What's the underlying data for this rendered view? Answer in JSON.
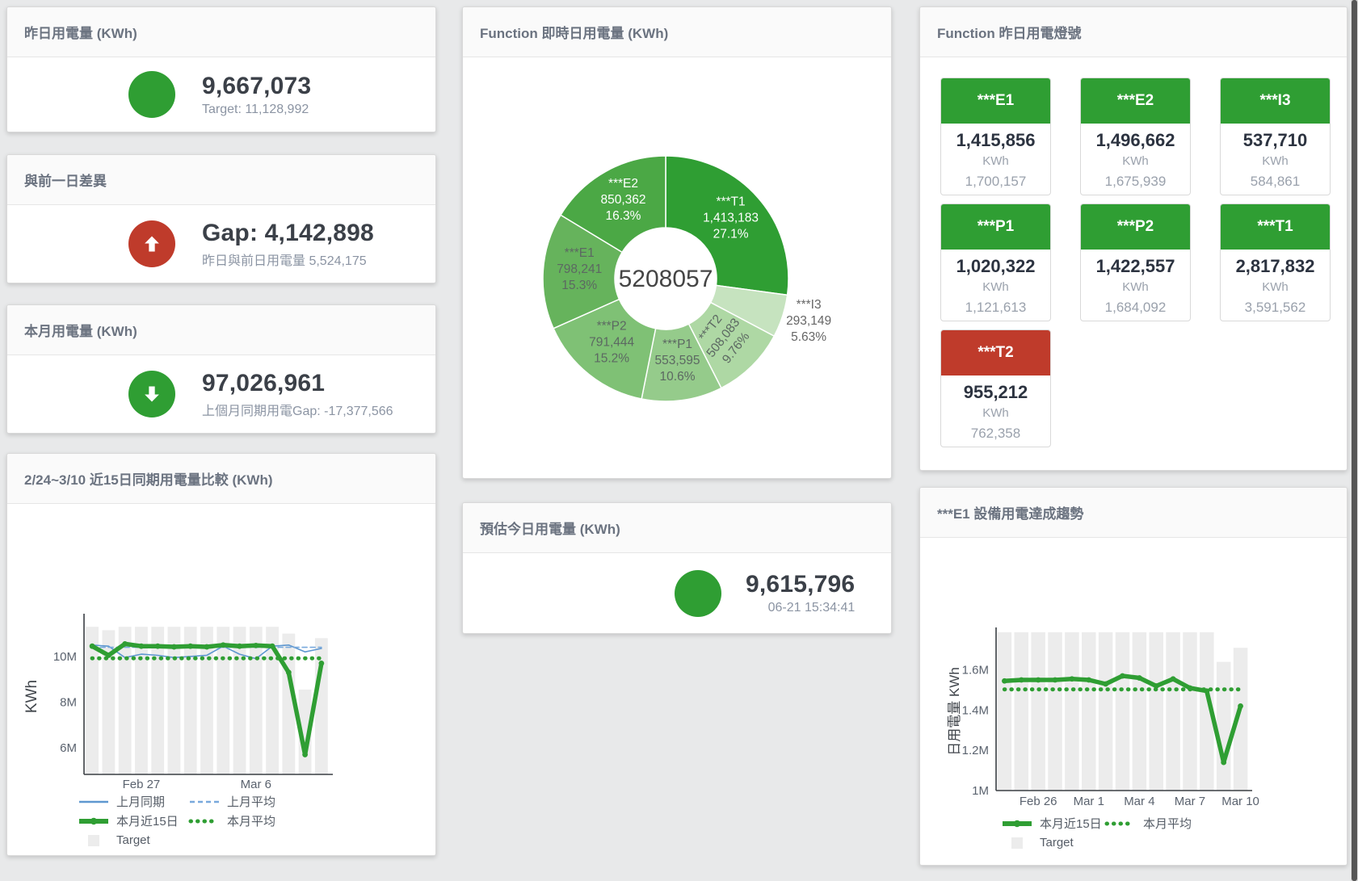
{
  "colors": {
    "green": "#2f9e33",
    "red": "#bf3b2b",
    "blue_line": "#5e97d0",
    "blue_dash": "#79a9dc",
    "target_bar": "#ececec",
    "axis": "#3a3f44",
    "tick_text": "#5a626e",
    "panel_title": "#6b7380",
    "stat_value": "#3b4048",
    "stat_sub": "#8b94a3"
  },
  "panels": {
    "yesterday": {
      "title": "昨日用電量 (KWh)",
      "value": "9,667,073",
      "subtitle": "Target: 11,128,992"
    },
    "day_gap": {
      "title": "與前一日差異",
      "value": "Gap: 4,142,898",
      "subtitle": "昨日與前日用電量 5,524,175"
    },
    "month": {
      "title": "本月用電量 (KWh)",
      "value": "97,026,961",
      "subtitle": "上個月同期用電Gap: -17,377,566"
    },
    "realtime": {
      "title": "Function 即時日用電量 (KWh)"
    },
    "estimate": {
      "title": "預估今日用電量 (KWh)",
      "value": "9,615,796",
      "subtitle": "06-21 15:34:41"
    },
    "lights": {
      "title": "Function 昨日用電燈號",
      "unit": "KWh",
      "tiles": [
        {
          "label": "***E1",
          "value": "1,415,856",
          "unit": "KWh",
          "target": "1,700,157",
          "status": "ok"
        },
        {
          "label": "***E2",
          "value": "1,496,662",
          "unit": "KWh",
          "target": "1,675,939",
          "status": "ok"
        },
        {
          "label": "***I3",
          "value": "537,710",
          "unit": "KWh",
          "target": "584,861",
          "status": "ok"
        },
        {
          "label": "***P1",
          "value": "1,020,322",
          "unit": "KWh",
          "target": "1,121,613",
          "status": "ok"
        },
        {
          "label": "***P2",
          "value": "1,422,557",
          "unit": "KWh",
          "target": "1,684,092",
          "status": "ok"
        },
        {
          "label": "***T1",
          "value": "2,817,832",
          "unit": "KWh",
          "target": "3,591,562",
          "status": "ok"
        },
        {
          "label": "***T2",
          "value": "955,212",
          "unit": "KWh",
          "target": "762,358",
          "status": "alert"
        }
      ]
    },
    "compare": {
      "title": "2/24~3/10 近15日同期用電量比較 (KWh)"
    },
    "trend": {
      "title": "***E1 設備用電達成趨勢"
    }
  },
  "chart_data": [
    {
      "type": "pie",
      "panel": "realtime",
      "title": "Function 即時日用電量 (KWh)",
      "center_total": "5208057",
      "slices": [
        {
          "name": "***T1",
          "value": 1413183,
          "value_str": "1,413,183",
          "pct": "27.1%",
          "color": "#2f9e33",
          "label": "inside",
          "label_color": "#ffffff"
        },
        {
          "name": "***I3",
          "value": 293149,
          "value_str": "293,149",
          "pct": "5.63%",
          "color": "#c6e3bf",
          "label": "outside",
          "label_color": "#666666"
        },
        {
          "name": "***T2",
          "value": 508083,
          "value_str": "508,083",
          "pct": "9.76%",
          "color": "#aed8a4",
          "label": "inside",
          "label_color": "#5c6862",
          "label_rotate": -52
        },
        {
          "name": "***P1",
          "value": 553595,
          "value_str": "553,595",
          "pct": "10.6%",
          "color": "#95cb8b",
          "label": "inside",
          "label_color": "#5c6862"
        },
        {
          "name": "***P2",
          "value": 791444,
          "value_str": "791,444",
          "pct": "15.2%",
          "color": "#7fc175",
          "label": "inside",
          "label_color": "#5c6862"
        },
        {
          "name": "***E1",
          "value": 798241,
          "value_str": "798,241",
          "pct": "15.3%",
          "color": "#66b35c",
          "label": "inside",
          "label_color": "#5c6862"
        },
        {
          "name": "***E2",
          "value": 850362,
          "value_str": "850,362",
          "pct": "16.3%",
          "color": "#4ba845",
          "label": "inside",
          "label_color": "#ffffff"
        }
      ]
    },
    {
      "type": "line",
      "panel": "compare",
      "title": "2/24~3/10 近15日同期用電量比較 (KWh)",
      "ylabel": "KWh",
      "values_unit": "M KWh",
      "n": 15,
      "ylim": [
        4.83,
        11.66
      ],
      "yticks": [
        {
          "v": 6,
          "label": "6M"
        },
        {
          "v": 8,
          "label": "8M"
        },
        {
          "v": 10,
          "label": "10M"
        }
      ],
      "xticks": [
        {
          "i": 3,
          "label": "Feb 27"
        },
        {
          "i": 10,
          "label": "Mar 6"
        }
      ],
      "grid": false,
      "legend_position": "bottom-left",
      "target": {
        "name": "Target",
        "color": "#ececec",
        "values": [
          11.3,
          11.15,
          11.3,
          11.3,
          11.3,
          11.3,
          11.3,
          11.3,
          11.3,
          11.3,
          11.3,
          11.3,
          11.0,
          8.55,
          10.8
        ]
      },
      "series": [
        {
          "name": "上月同期",
          "color": "#5e97d0",
          "width": 1.6,
          "style": "solid",
          "values": [
            10.5,
            10.45,
            9.95,
            10.1,
            10.05,
            9.95,
            10.0,
            10.05,
            10.45,
            10.1,
            9.9,
            10.45,
            10.5,
            10.2,
            10.35
          ]
        },
        {
          "name": "上月平均",
          "color": "#79a9dc",
          "width": 1.6,
          "style": "dash",
          "const": 10.4
        },
        {
          "name": "本月近15日",
          "color": "#2f9e33",
          "width": 5.5,
          "style": "solid",
          "markers": true,
          "values": [
            10.45,
            10.05,
            10.55,
            10.45,
            10.45,
            10.42,
            10.45,
            10.42,
            10.5,
            10.45,
            10.48,
            10.45,
            9.3,
            5.7,
            9.7
          ]
        },
        {
          "name": "本月平均",
          "color": "#2f9e33",
          "width": 4.5,
          "style": "dots",
          "const": 9.92
        }
      ],
      "legend": [
        [
          "上月同期",
          "上月平均"
        ],
        [
          "本月近15日",
          "本月平均"
        ],
        [
          "Target"
        ]
      ]
    },
    {
      "type": "line",
      "panel": "trend",
      "title": "***E1 設備用電達成趨勢",
      "ylabel": "日用電量 KWh",
      "values_unit": "M KWh",
      "n": 15,
      "ylim": [
        1.0,
        1.787
      ],
      "yticks": [
        {
          "v": 1.0,
          "label": "1M"
        },
        {
          "v": 1.2,
          "label": "1.2M"
        },
        {
          "v": 1.4,
          "label": "1.4M"
        },
        {
          "v": 1.6,
          "label": "1.6M"
        }
      ],
      "xticks": [
        {
          "i": 2,
          "label": "Feb 26"
        },
        {
          "i": 5,
          "label": "Mar 1"
        },
        {
          "i": 8,
          "label": "Mar 4"
        },
        {
          "i": 11,
          "label": "Mar 7"
        },
        {
          "i": 14,
          "label": "Mar 10"
        }
      ],
      "grid": false,
      "legend_position": "bottom-left",
      "target": {
        "name": "Target",
        "color": "#ececec",
        "values": [
          1.787,
          1.787,
          1.787,
          1.787,
          1.787,
          1.787,
          1.787,
          1.787,
          1.787,
          1.787,
          1.787,
          1.787,
          1.787,
          1.64,
          1.71
        ]
      },
      "series": [
        {
          "name": "本月近15日",
          "color": "#2f9e33",
          "width": 5.5,
          "style": "solid",
          "markers": true,
          "values": [
            1.545,
            1.55,
            1.55,
            1.55,
            1.555,
            1.55,
            1.53,
            1.57,
            1.56,
            1.52,
            1.555,
            1.51,
            1.495,
            1.14,
            1.42
          ]
        },
        {
          "name": "本月平均",
          "color": "#2f9e33",
          "width": 4.5,
          "style": "dots",
          "const": 1.503
        }
      ],
      "legend": [
        [
          "本月近15日",
          "本月平均"
        ],
        [
          "Target"
        ]
      ]
    }
  ]
}
